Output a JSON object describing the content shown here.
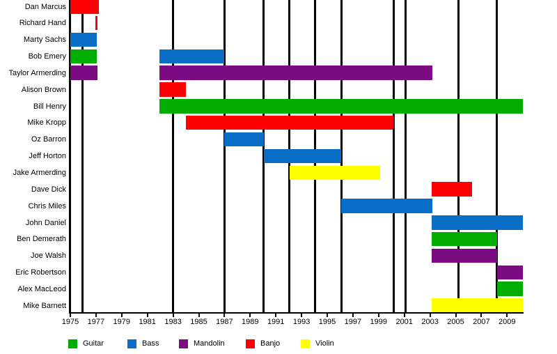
{
  "chart_data": {
    "type": "gantt",
    "description": "Band members timeline: horizontal bars show each member's tenure colored by instrument; vertical black lines mark event years.",
    "x_axis": {
      "tick_years": [
        "1975",
        "1977",
        "1979",
        "1981",
        "1983",
        "1985",
        "1987",
        "1989",
        "1991",
        "1993",
        "1995",
        "1997",
        "1999",
        "2001",
        "2003",
        "2005",
        "2007",
        "2009"
      ],
      "min_year": 1975,
      "max_year": 2010.25,
      "grid": "off"
    },
    "event_line_years": [
      1975.95,
      1983.0,
      1987.0,
      1990.05,
      1992.05,
      1994.05,
      1996.1,
      2000.15,
      2001.1,
      2005.2,
      2008.2
    ],
    "legend": {
      "position": "bottom",
      "items": [
        {
          "label": "Guitar",
          "color": "#00AD00"
        },
        {
          "label": "Bass",
          "color": "#0A6EC7"
        },
        {
          "label": "Mandolin",
          "color": "#7A0B80"
        },
        {
          "label": "Banjo",
          "color": "#FF0000"
        },
        {
          "label": "Violin",
          "color": "#FFFF00"
        }
      ]
    },
    "colors": {
      "background": "#FFFFFF",
      "text": "#000000",
      "lines": "#000000"
    },
    "members": [
      {
        "name": "Dan Marcus",
        "bars": [
          {
            "instrument": "Banjo",
            "start": 1975,
            "end": 1977.2
          }
        ]
      },
      {
        "name": "Richard Hand",
        "bars": [
          {
            "instrument": "Banjo",
            "start": 1976.95,
            "end": 1977.1
          }
        ]
      },
      {
        "name": "Marty Sachs",
        "bars": [
          {
            "instrument": "Bass",
            "start": 1975,
            "end": 1977.05
          }
        ]
      },
      {
        "name": "Bob Emery",
        "bars": [
          {
            "instrument": "Guitar",
            "start": 1975,
            "end": 1977.05
          },
          {
            "instrument": "Bass",
            "start": 1981.95,
            "end": 1987.0
          }
        ]
      },
      {
        "name": "Taylor Armerding",
        "bars": [
          {
            "instrument": "Mandolin",
            "start": 1975,
            "end": 1977.1
          },
          {
            "instrument": "Mandolin",
            "start": 1981.95,
            "end": 2003.2
          }
        ]
      },
      {
        "name": "Alison Brown",
        "bars": [
          {
            "instrument": "Banjo",
            "start": 1981.95,
            "end": 1984.0
          }
        ]
      },
      {
        "name": "Bill Henry",
        "bars": [
          {
            "instrument": "Guitar",
            "start": 1981.95,
            "end": 2010.25
          }
        ]
      },
      {
        "name": "Mike Kropp",
        "bars": [
          {
            "instrument": "Banjo",
            "start": 1984.0,
            "end": 2000.15
          }
        ]
      },
      {
        "name": "Oz Barron",
        "bars": [
          {
            "instrument": "Bass",
            "start": 1987.0,
            "end": 1990.05
          }
        ]
      },
      {
        "name": "Jeff Horton",
        "bars": [
          {
            "instrument": "Bass",
            "start": 1990.05,
            "end": 1996.1
          }
        ]
      },
      {
        "name": "Jake Armerding",
        "bars": [
          {
            "instrument": "Violin",
            "start": 1992.05,
            "end": 1999.1
          }
        ]
      },
      {
        "name": "Dave Dick",
        "bars": [
          {
            "instrument": "Banjo",
            "start": 2003.15,
            "end": 2006.25
          }
        ]
      },
      {
        "name": "Chris Miles",
        "bars": [
          {
            "instrument": "Bass",
            "start": 1996.1,
            "end": 2003.2
          }
        ]
      },
      {
        "name": "John Daniel",
        "bars": [
          {
            "instrument": "Bass",
            "start": 2003.15,
            "end": 2010.25
          }
        ]
      },
      {
        "name": "Ben Demerath",
        "bars": [
          {
            "instrument": "Guitar",
            "start": 2003.15,
            "end": 2008.2
          }
        ]
      },
      {
        "name": "Joe Walsh",
        "bars": [
          {
            "instrument": "Mandolin",
            "start": 2003.15,
            "end": 2008.2
          }
        ]
      },
      {
        "name": "Eric Robertson",
        "bars": [
          {
            "instrument": "Mandolin",
            "start": 2008.2,
            "end": 2010.25
          }
        ]
      },
      {
        "name": "Alex MacLeod",
        "bars": [
          {
            "instrument": "Guitar",
            "start": 2008.2,
            "end": 2010.25
          }
        ]
      },
      {
        "name": "Mike Barnett",
        "bars": [
          {
            "instrument": "Violin",
            "start": 2003.15,
            "end": 2010.25
          }
        ]
      }
    ]
  }
}
